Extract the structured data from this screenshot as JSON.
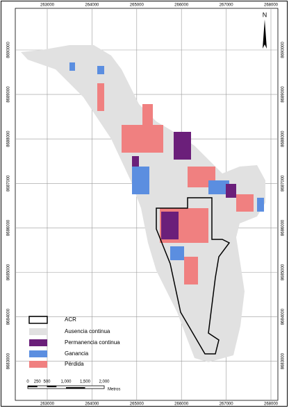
{
  "map": {
    "easting_labels": [
      263000,
      264000,
      265000,
      266000,
      267000,
      268000
    ],
    "northing_labels": [
      8690000,
      8689000,
      8688000,
      8687000,
      8686000,
      8685000,
      8684000,
      8683000
    ],
    "north": "N",
    "legend": [
      "ACR",
      "Ausencia continua",
      "Permanencia continua",
      "Ganancia",
      "Pérdida"
    ],
    "scale": {
      "labels": [
        "0",
        "250",
        "500",
        "1,000",
        "1,500",
        "2,000"
      ],
      "unit": "Metros"
    }
  }
}
